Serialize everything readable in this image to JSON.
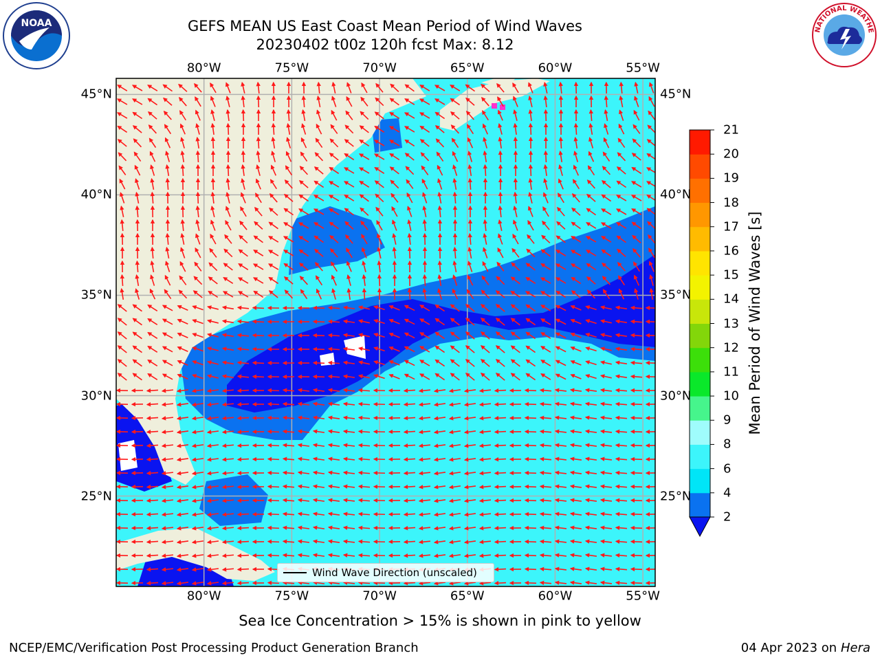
{
  "title_line1": "GEFS MEAN US East Coast Mean Period of Wind Waves",
  "title_line2": "20230402 t00z 120h fcst   Max: 8.12",
  "map": {
    "lon_labels": [
      "80°W",
      "75°W",
      "70°W",
      "65°W",
      "60°W",
      "55°W"
    ],
    "lat_labels": [
      "45°N",
      "40°N",
      "35°N",
      "30°N",
      "25°N"
    ],
    "lon_values": [
      -80,
      -75,
      -70,
      -65,
      -60,
      -55
    ],
    "lat_values": [
      45,
      40,
      35,
      30,
      25
    ],
    "extent": {
      "lon_min": -85,
      "lon_max": -54.3,
      "lat_min": 20.5,
      "lat_max": 45.8
    }
  },
  "legend_label": "Wind Wave Direction (unscaled)",
  "colorbar": {
    "title": "Mean Period of Wind Waves [s]",
    "ticks": [
      "2",
      "4",
      "6",
      "8",
      "9",
      "10",
      "11",
      "12",
      "13",
      "14",
      "15",
      "16",
      "17",
      "18",
      "19",
      "20",
      "21"
    ],
    "colors": [
      "#0a72f0",
      "#00e5f7",
      "#3cf5fb",
      "#9ffcfc",
      "#46f58c",
      "#0ae82a",
      "#3cdf0a",
      "#83d60a",
      "#c8e60a",
      "#f3f300",
      "#ffe400",
      "#ffbb00",
      "#ff9700",
      "#ff7000",
      "#ff4a00",
      "#ff1a00"
    ],
    "extend_color": "#0a14f0"
  },
  "field_colors": {
    "ocean_base": "#3cf5fb",
    "band_2_4": "#0a72f0",
    "band_below_2": "#0a14f0",
    "land": "#efefdc",
    "arrow": "#ff1a1a",
    "ice": "#ff33cc"
  },
  "footnote": "Sea Ice Concentration > 15% is shown in pink to yellow",
  "credit": "NCEP/EMC/Verification Post Processing Product Generation Branch",
  "date_text": "04 Apr 2023 on",
  "machine": "Hera",
  "logos": {
    "noaa": "NOAA",
    "nws": "NATIONAL WEATHER SERVICE"
  }
}
